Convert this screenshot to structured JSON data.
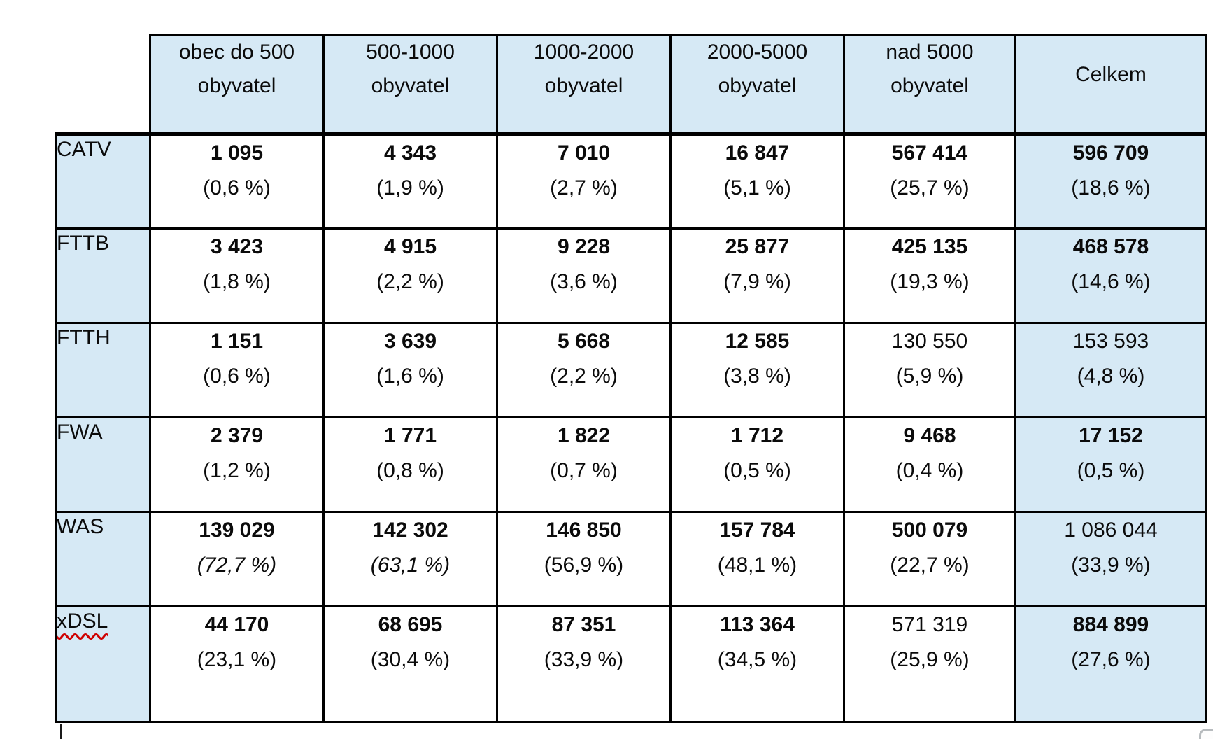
{
  "document": {
    "background_color": "#ffffff",
    "header_fill_color": "#d6e9f5",
    "border_color": "#000000",
    "spellcheck_squiggle_color": "#cf0000"
  },
  "table": {
    "columns": [
      {
        "line1": "obec do 500",
        "line2": "obyvatel"
      },
      {
        "line1": "500-1000",
        "line2": "obyvatel"
      },
      {
        "line1": "1000-2000",
        "line2": "obyvatel"
      },
      {
        "line1": "2000-5000",
        "line2": "obyvatel"
      },
      {
        "line1": "nad 5000",
        "line2": "obyvatel"
      },
      {
        "line1": "Celkem",
        "line2": ""
      }
    ],
    "rows": [
      {
        "label": "CATV",
        "misspelled": false,
        "cells": [
          {
            "value": "1 095",
            "pct": "(0,6 %)",
            "bold": true,
            "italic_pct": false
          },
          {
            "value": "4 343",
            "pct": "(1,9 %)",
            "bold": true,
            "italic_pct": false
          },
          {
            "value": "7 010",
            "pct": "(2,7 %)",
            "bold": true,
            "italic_pct": false
          },
          {
            "value": "16 847",
            "pct": "(5,1 %)",
            "bold": true,
            "italic_pct": false
          },
          {
            "value": "567 414",
            "pct": "(25,7 %)",
            "bold": true,
            "italic_pct": false
          },
          {
            "value": "596 709",
            "pct": "(18,6 %)",
            "bold": true,
            "italic_pct": false
          }
        ]
      },
      {
        "label": "FTTB",
        "misspelled": false,
        "cells": [
          {
            "value": "3 423",
            "pct": "(1,8 %)",
            "bold": true,
            "italic_pct": false
          },
          {
            "value": "4 915",
            "pct": "(2,2 %)",
            "bold": true,
            "italic_pct": false
          },
          {
            "value": "9 228",
            "pct": "(3,6 %)",
            "bold": true,
            "italic_pct": false
          },
          {
            "value": "25 877",
            "pct": "(7,9 %)",
            "bold": true,
            "italic_pct": false
          },
          {
            "value": "425 135",
            "pct": "(19,3 %)",
            "bold": true,
            "italic_pct": false
          },
          {
            "value": "468 578",
            "pct": "(14,6 %)",
            "bold": true,
            "italic_pct": false
          }
        ]
      },
      {
        "label": "FTTH",
        "misspelled": false,
        "cells": [
          {
            "value": "1 151",
            "pct": "(0,6 %)",
            "bold": true,
            "italic_pct": false
          },
          {
            "value": "3 639",
            "pct": "(1,6 %)",
            "bold": true,
            "italic_pct": false
          },
          {
            "value": "5 668",
            "pct": "(2,2 %)",
            "bold": true,
            "italic_pct": false
          },
          {
            "value": "12 585",
            "pct": "(3,8 %)",
            "bold": true,
            "italic_pct": false
          },
          {
            "value": "130 550",
            "pct": "(5,9 %)",
            "bold": false,
            "italic_pct": false
          },
          {
            "value": "153 593",
            "pct": "(4,8 %)",
            "bold": false,
            "italic_pct": false
          }
        ]
      },
      {
        "label": "FWA",
        "misspelled": false,
        "cells": [
          {
            "value": "2 379",
            "pct": "(1,2 %)",
            "bold": true,
            "italic_pct": false
          },
          {
            "value": "1 771",
            "pct": "(0,8 %)",
            "bold": true,
            "italic_pct": false
          },
          {
            "value": "1 822",
            "pct": "(0,7 %)",
            "bold": true,
            "italic_pct": false
          },
          {
            "value": "1 712",
            "pct": "(0,5 %)",
            "bold": true,
            "italic_pct": false
          },
          {
            "value": "9 468",
            "pct": "(0,4 %)",
            "bold": true,
            "italic_pct": false
          },
          {
            "value": "17 152",
            "pct": "(0,5 %)",
            "bold": true,
            "italic_pct": false
          }
        ]
      },
      {
        "label": "WAS",
        "misspelled": false,
        "cells": [
          {
            "value": "139 029",
            "pct": "(72,7 %)",
            "bold": true,
            "italic_pct": true
          },
          {
            "value": "142 302",
            "pct": "(63,1 %)",
            "bold": true,
            "italic_pct": true
          },
          {
            "value": "146 850",
            "pct": "(56,9 %)",
            "bold": true,
            "italic_pct": false
          },
          {
            "value": "157 784",
            "pct": "(48,1 %)",
            "bold": true,
            "italic_pct": false
          },
          {
            "value": "500 079",
            "pct": "(22,7 %)",
            "bold": true,
            "italic_pct": false
          },
          {
            "value": "1 086 044",
            "pct": "(33,9 %)",
            "bold": false,
            "italic_pct": false
          }
        ]
      },
      {
        "label": "xDSL",
        "misspelled": true,
        "cells": [
          {
            "value": "44 170",
            "pct": "(23,1 %)",
            "bold": true,
            "italic_pct": false
          },
          {
            "value": "68 695",
            "pct": "(30,4 %)",
            "bold": true,
            "italic_pct": false
          },
          {
            "value": "87 351",
            "pct": "(33,9 %)",
            "bold": true,
            "italic_pct": false
          },
          {
            "value": "113 364",
            "pct": "(34,5 %)",
            "bold": true,
            "italic_pct": false
          },
          {
            "value": "571 319",
            "pct": "(25,9 %)",
            "bold": false,
            "italic_pct": false
          },
          {
            "value": "884 899",
            "pct": "(27,6 %)",
            "bold": true,
            "italic_pct": false
          }
        ]
      }
    ]
  }
}
